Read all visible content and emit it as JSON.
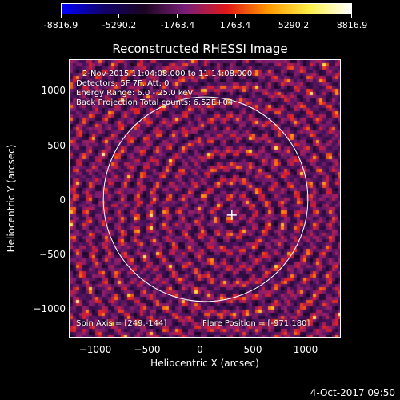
{
  "colorbar": {
    "labels": [
      "-8816.9",
      "-5290.2",
      "-1763.4",
      "1763.4",
      "5290.2",
      "8816.9"
    ],
    "colors": [
      "#0000ff",
      "#10006a",
      "#1b0521",
      "#7a1f78",
      "#e21818",
      "#ff9a00",
      "#fff04a",
      "#ffffff"
    ]
  },
  "title": "Reconstructed RHESSI Image",
  "info": {
    "line1": "2-Nov-2015 11:04:08.000 to 11:14:08.000",
    "line2": "Detectors: 5F 7F, Att: 0",
    "line3": "Energy Range: 6.0 - 25.0 keV",
    "line4": "Back Projection    Total counts: 6.52E+04",
    "spin_axis": "Spin Axis = [249,-144]",
    "flare_position": "Flare Position = [-971,180]"
  },
  "axes": {
    "xlabel": "Heliocentric X (arcsec)",
    "ylabel": "Heliocentric Y (arcsec)",
    "xticks": [
      "−1000",
      "−500",
      "0",
      "500",
      "1000"
    ],
    "yticks": [
      "1000",
      "500",
      "0",
      "−500",
      "−1000"
    ]
  },
  "timestamp": "4-Oct-2017 09:50",
  "chart_data": {
    "type": "heatmap",
    "title": "Reconstructed RHESSI Image",
    "xlabel": "Heliocentric X (arcsec)",
    "ylabel": "Heliocentric Y (arcsec)",
    "xlim": [
      -1290,
      1290
    ],
    "ylim": [
      -1260,
      1260
    ],
    "xticks": [
      -1000,
      -500,
      0,
      500,
      1000
    ],
    "yticks": [
      1000,
      500,
      0,
      -500,
      -1000
    ],
    "colorbar_range": [
      -8816.9,
      8816.9
    ],
    "solar_disk": {
      "center": [
        0,
        0
      ],
      "radius": 970
    },
    "spin_axis_marker": [
      249,
      -144
    ],
    "grid": false
  }
}
